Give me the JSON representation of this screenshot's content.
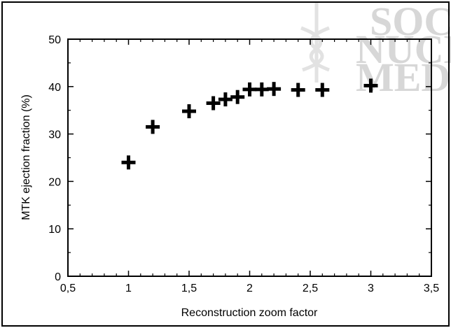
{
  "watermark": {
    "lines": [
      "SOCI",
      "NUCL",
      "MEDI"
    ],
    "color": "#d7d7d7"
  },
  "chart_data": {
    "type": "scatter",
    "title": "",
    "xlabel": "Reconstruction zoom factor",
    "ylabel": "MTK ejection fraction (%)",
    "xlim": [
      0.5,
      3.5
    ],
    "ylim": [
      0,
      50
    ],
    "x_ticks": [
      0.5,
      1,
      1.5,
      2,
      2.5,
      3,
      3.5
    ],
    "x_tick_labels": [
      "0,5",
      "1",
      "1,5",
      "2",
      "2,5",
      "3",
      "3,5"
    ],
    "y_ticks": [
      0,
      10,
      20,
      30,
      40,
      50
    ],
    "y_tick_labels": [
      "0",
      "10",
      "20",
      "30",
      "40",
      "50"
    ],
    "grid": false,
    "marker": "plus",
    "marker_color": "#000000",
    "series": [
      {
        "points": [
          {
            "x": 1.0,
            "y": 24
          },
          {
            "x": 1.2,
            "y": 31.5
          },
          {
            "x": 1.5,
            "y": 34.8
          },
          {
            "x": 1.7,
            "y": 36.5
          },
          {
            "x": 1.8,
            "y": 37.3
          },
          {
            "x": 1.9,
            "y": 37.8
          },
          {
            "x": 2.0,
            "y": 39.4
          },
          {
            "x": 2.1,
            "y": 39.4
          },
          {
            "x": 2.2,
            "y": 39.5
          },
          {
            "x": 2.4,
            "y": 39.3
          },
          {
            "x": 2.6,
            "y": 39.3
          },
          {
            "x": 3.0,
            "y": 40.2
          }
        ]
      }
    ]
  }
}
